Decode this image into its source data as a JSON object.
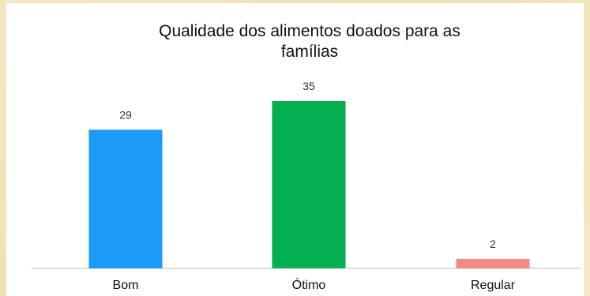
{
  "chart_data": {
    "type": "bar",
    "title_lines": [
      "Qualidade dos alimentos doados para as",
      "famílias"
    ],
    "categories": [
      "Bom",
      "Ótimo",
      "Regular"
    ],
    "values": [
      29,
      35,
      2
    ],
    "colors": [
      "#1a9bf7",
      "#02b052",
      "#f28b82"
    ],
    "ylim": [
      0,
      35
    ],
    "grid": false,
    "legend": "none"
  }
}
